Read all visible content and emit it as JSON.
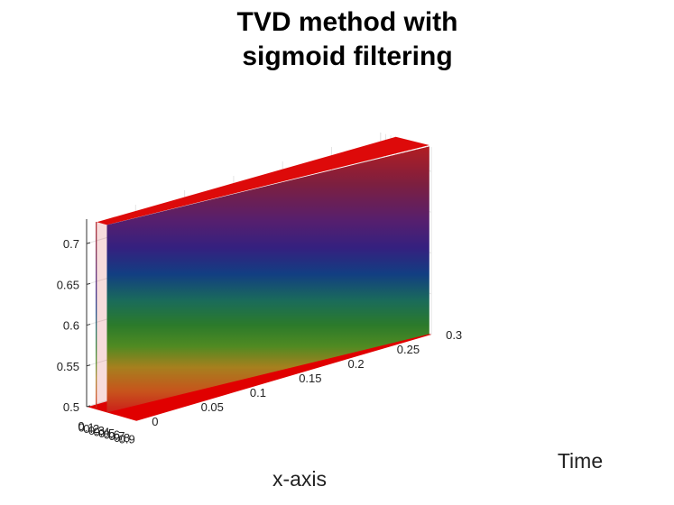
{
  "chart_data": {
    "type": "surface",
    "title_lines": [
      "TVD method with",
      "sigmoid filtering"
    ],
    "xlabel": "x-axis",
    "ylabel": "Time",
    "zlabel": "",
    "x_ticks": [
      "0",
      "0.1",
      "0.2",
      "0.3",
      "0.4",
      "0.5",
      "0.6",
      "0.7",
      "0.8",
      "0.9"
    ],
    "time_ticks": [
      "0",
      "0.05",
      "0.1",
      "0.15",
      "0.2",
      "0.25",
      "0.3"
    ],
    "z_ticks": [
      "0.5",
      "0.55",
      "0.6",
      "0.65",
      "0.7"
    ],
    "xlim": [
      0,
      1
    ],
    "time_lim": [
      0,
      0.3
    ],
    "zlim": [
      0.5,
      0.73
    ],
    "colormap": "prism",
    "grid": true,
    "surface": {
      "base_value": 0.5,
      "peak_value": 0.73,
      "pulse_left_x0": 0.2,
      "pulse_left_x_end": 0.3,
      "pulse_right_x0": 0.4,
      "pulse_right_x_end": 0.96
    }
  }
}
